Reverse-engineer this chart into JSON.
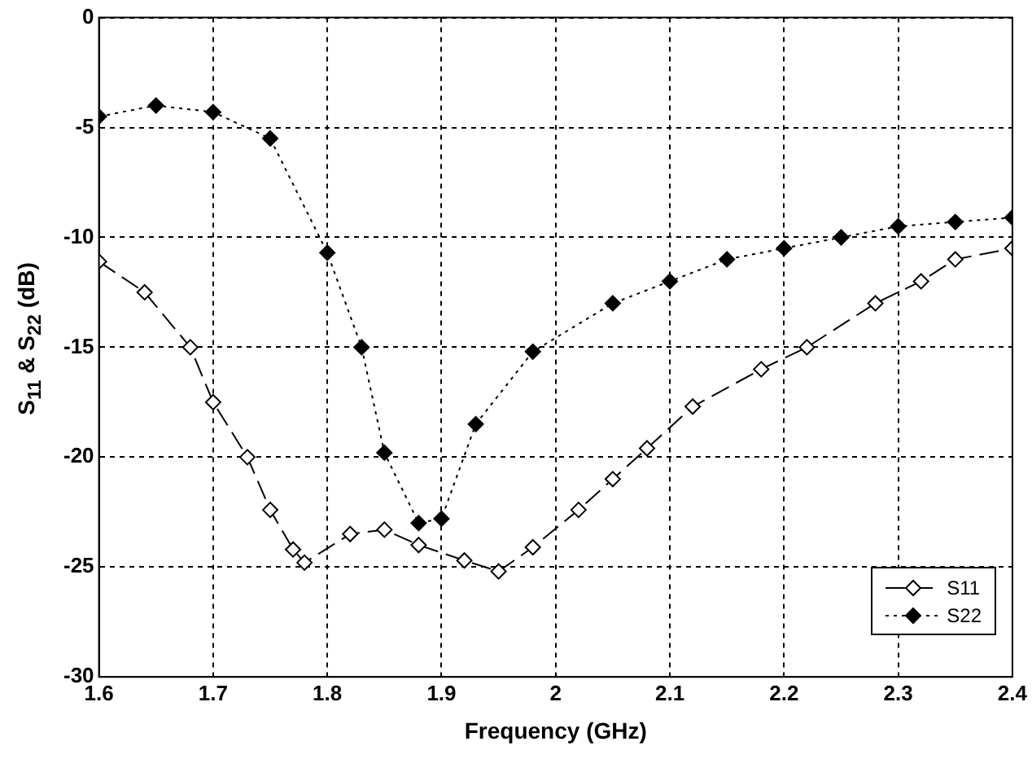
{
  "chart_data": {
    "type": "line",
    "xlabel": "Frequency (GHz)",
    "ylabel": "S$_{11}$ & S$_{22}$ (dB)",
    "xlim": [
      1.6,
      2.4
    ],
    "xticks": [
      1.6,
      1.7,
      1.8,
      1.9,
      2,
      2.1,
      2.2,
      2.3,
      2.4
    ],
    "ylim": [
      -30,
      0
    ],
    "yticks": [
      -30,
      -25,
      -20,
      -15,
      -10,
      -5,
      0
    ],
    "grid": true,
    "legend": "bottom right",
    "marker": "diamond",
    "series": [
      {
        "name": "S11",
        "color": "#000000",
        "line_style": "dashed",
        "x": [
          1.6,
          1.64,
          1.68,
          1.7,
          1.73,
          1.75,
          1.77,
          1.78,
          1.82,
          1.85,
          1.88,
          1.92,
          1.95,
          1.98,
          2.02,
          2.05,
          2.08,
          2.12,
          2.18,
          2.22,
          2.28,
          2.32,
          2.35,
          2.4
        ],
        "values": [
          -11.1,
          -12.5,
          -15,
          -17.5,
          -20,
          -22.4,
          -24.2,
          -24.8,
          -23.5,
          -23.3,
          -24,
          -24.7,
          -25.2,
          -24.1,
          -22.4,
          -21,
          -19.6,
          -17.7,
          -16,
          -15,
          -13,
          -12,
          -11,
          -10.5
        ]
      },
      {
        "name": "S22",
        "color": "#000000",
        "line_style": "dotted",
        "x": [
          1.6,
          1.65,
          1.7,
          1.75,
          1.8,
          1.83,
          1.85,
          1.88,
          1.9,
          1.93,
          1.98,
          2.05,
          2.1,
          2.15,
          2.2,
          2.25,
          2.3,
          2.35,
          2.4
        ],
        "values": [
          -4.5,
          -4,
          -4.3,
          -5.5,
          -10.7,
          -15,
          -19.8,
          -23,
          -22.8,
          -18.5,
          -15.2,
          -13,
          -12,
          -11,
          -10.5,
          -10,
          -9.5,
          -9.3,
          -9.1
        ]
      }
    ]
  }
}
